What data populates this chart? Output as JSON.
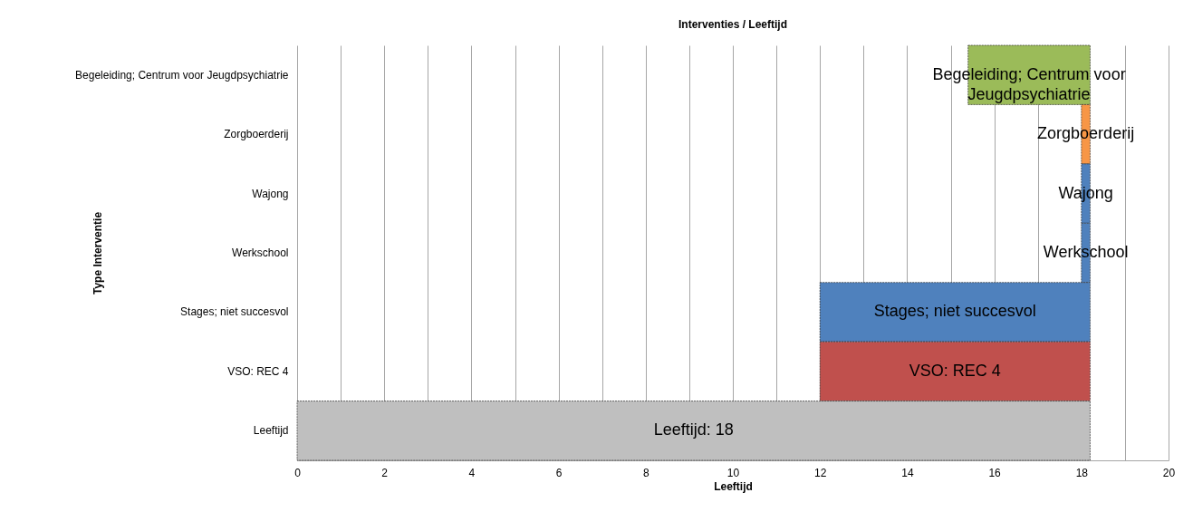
{
  "chart_data": {
    "type": "bar",
    "orientation": "horizontal",
    "title": "Interventies / Leeftijd",
    "xlabel": "Leeftijd",
    "ylabel": "Type Interventie",
    "categories": [
      "Begeleiding; Centrum voor Jeugdpsychiatrie",
      "Zorgboerderij",
      "Wajong",
      "Werkschool",
      "Stages; niet succesvol",
      "VSO: REC 4",
      "Leeftijd"
    ],
    "base": [
      15.4,
      18,
      18,
      18,
      12,
      12,
      0
    ],
    "values": [
      2.8,
      0.2,
      0.2,
      0.2,
      6.2,
      6.2,
      18.2
    ],
    "colors": [
      "#9bbb59",
      "#f79646",
      "#4f81bd",
      "#4f81bd",
      "#4f81bd",
      "#c0504d",
      "#bfbfbf"
    ],
    "value_labels": [
      "Begeleiding; Centrum voor Jeugdpsychiatrie",
      "Zorgboerderij",
      "Wajong",
      "Werkschool",
      "Stages; niet succesvol",
      "VSO: REC 4",
      "Leeftijd: 18"
    ],
    "xlim": [
      0,
      20
    ],
    "xticks": [
      0,
      {
        "value": 1,
        "label": null
      },
      2,
      {
        "value": 3,
        "label": null
      },
      4,
      {
        "value": 5,
        "label": null
      },
      6,
      {
        "value": 7,
        "label": null
      },
      8,
      {
        "value": 9,
        "label": null
      },
      10,
      {
        "value": 11,
        "label": null
      },
      12,
      {
        "value": 13,
        "label": null
      },
      14,
      {
        "value": 15,
        "label": null
      },
      16,
      {
        "value": 17,
        "label": null
      },
      18,
      {
        "value": 19,
        "label": null
      },
      20
    ],
    "grid": "x"
  }
}
